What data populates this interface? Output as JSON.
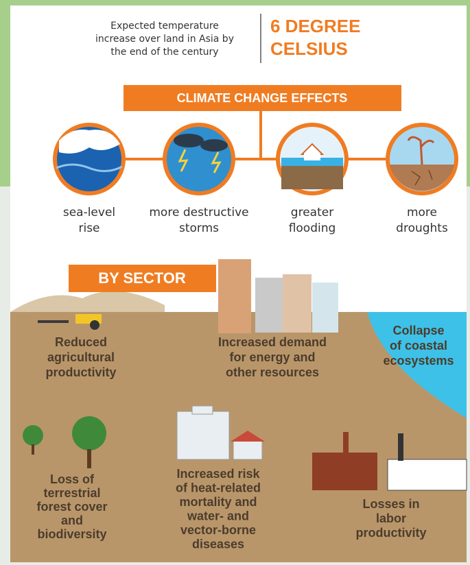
{
  "header": {
    "description": [
      "Expected temperature",
      "increase over land in Asia by",
      "the end of the century"
    ],
    "highlight": [
      "6 DEGREE",
      "CELSIUS"
    ]
  },
  "effects": {
    "title": "CLIMATE CHANGE EFFECTS",
    "items": [
      [
        "sea-level",
        "rise"
      ],
      [
        "more destructive",
        "storms"
      ],
      [
        "greater",
        "flooding"
      ],
      [
        "more",
        "droughts"
      ]
    ]
  },
  "sectors": {
    "title": "BY SECTOR",
    "items": [
      [
        "Reduced",
        "agricultural",
        "productivity"
      ],
      [
        "Increased demand",
        "for energy and",
        "other resources"
      ],
      [
        "Collapse",
        "of coastal",
        "ecosystems"
      ],
      [
        "Loss of",
        "terrestrial",
        "forest cover",
        "and",
        "biodiversity"
      ],
      [
        "Increased risk",
        "of heat-related",
        "mortality and",
        "water- and",
        "vector-borne",
        "diseases"
      ],
      [
        "Losses in",
        "labor",
        "productivity"
      ]
    ]
  }
}
